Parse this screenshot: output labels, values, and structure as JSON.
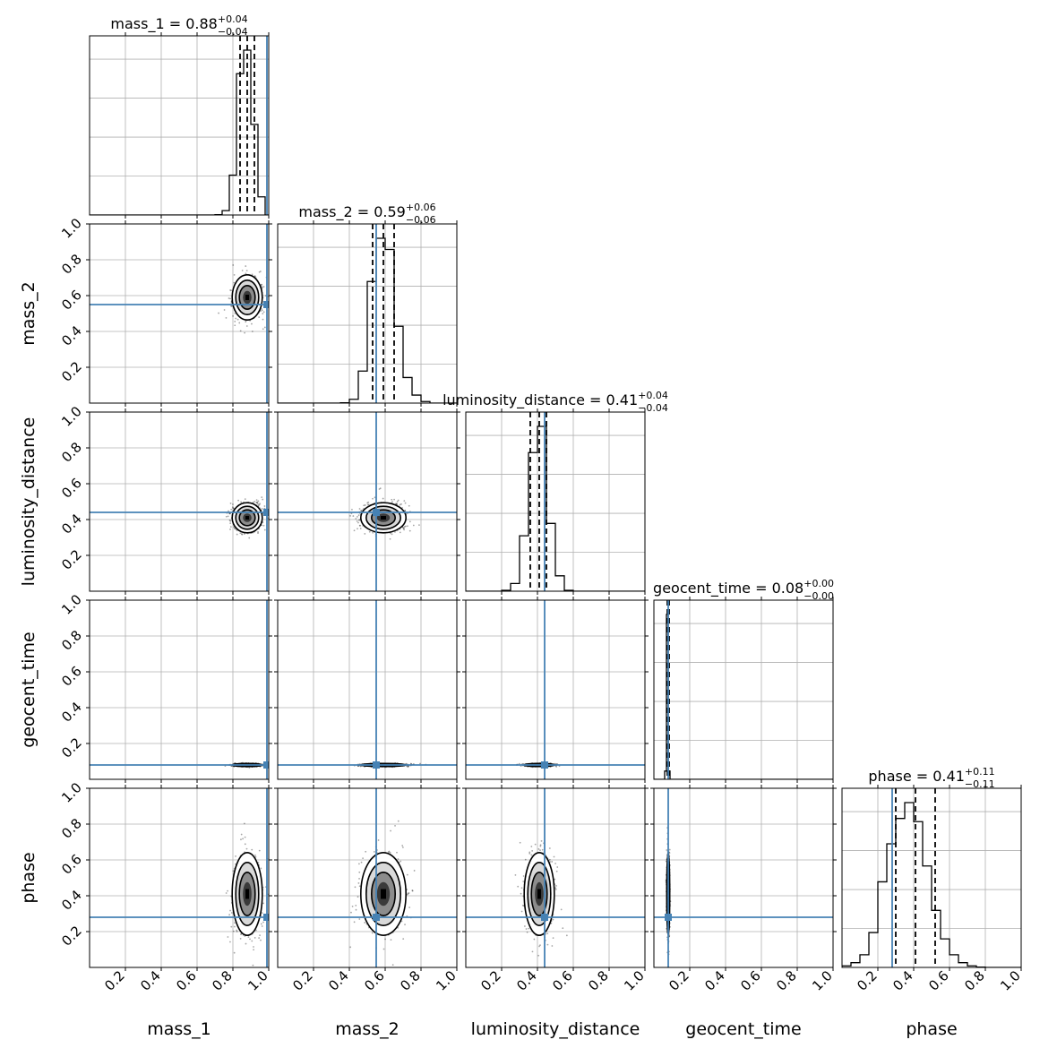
{
  "colors": {
    "truth": "#4682b4",
    "hist": "#000000",
    "grid": "#b0b0b0",
    "axis": "#000000",
    "density_fill": "#333333"
  },
  "chart_data": {
    "type": "corner",
    "parameters": [
      "mass_1",
      "mass_2",
      "luminosity_distance",
      "geocent_time",
      "phase"
    ],
    "axis_labels": [
      "mass_1",
      "mass_2",
      "luminosity_distance",
      "geocent_time",
      "phase"
    ],
    "range": [
      0,
      1
    ],
    "tick_values": [
      0.2,
      0.4,
      0.6,
      0.8,
      1.0
    ],
    "tick_labels": [
      "0.2",
      "0.4",
      "0.6",
      "0.8",
      "1.0"
    ],
    "grid": true,
    "titles": [
      {
        "name": "mass_1",
        "median": "0.88",
        "plus": "+0.04",
        "minus": "−0.04"
      },
      {
        "name": "mass_2",
        "median": "0.59",
        "plus": "+0.06",
        "minus": "−0.06"
      },
      {
        "name": "luminosity_distance",
        "median": "0.41",
        "plus": "+0.04",
        "minus": "−0.04"
      },
      {
        "name": "geocent_time",
        "median": "0.08",
        "plus": "+0.00",
        "minus": "−0.00"
      },
      {
        "name": "phase",
        "median": "0.41",
        "plus": "+0.11",
        "minus": "−0.11"
      }
    ],
    "truths": [
      0.99,
      0.55,
      0.44,
      0.08,
      0.28
    ],
    "posterior_mean": [
      0.88,
      0.59,
      0.41,
      0.08,
      0.41
    ],
    "posterior_sd": [
      0.04,
      0.06,
      0.04,
      0.004,
      0.11
    ],
    "quantiles": [
      [
        0.84,
        0.88,
        0.92
      ],
      [
        0.53,
        0.59,
        0.65
      ],
      [
        0.36,
        0.41,
        0.45
      ],
      [
        0.075,
        0.08,
        0.085
      ],
      [
        0.3,
        0.41,
        0.52
      ]
    ],
    "histograms": [
      {
        "bin_edges": [
          0.7,
          0.74,
          0.78,
          0.82,
          0.86,
          0.9,
          0.94,
          0.98,
          1.0
        ],
        "counts": [
          1,
          12,
          110,
          390,
          455,
          250,
          50,
          0
        ]
      },
      {
        "bin_edges": [
          0.35,
          0.4,
          0.45,
          0.5,
          0.55,
          0.6,
          0.65,
          0.7,
          0.75,
          0.8,
          0.85
        ],
        "counts": [
          1,
          12,
          100,
          380,
          515,
          480,
          240,
          80,
          25,
          5
        ]
      },
      {
        "bin_edges": [
          0.2,
          0.25,
          0.3,
          0.35,
          0.4,
          0.45,
          0.5,
          0.55,
          0.6
        ],
        "counts": [
          3,
          25,
          180,
          450,
          535,
          220,
          50,
          3
        ]
      },
      {
        "bin_edges": [
          0.06,
          0.07,
          0.08,
          0.09
        ],
        "counts": [
          30,
          600,
          30
        ]
      },
      {
        "bin_edges": [
          0.0,
          0.05,
          0.1,
          0.15,
          0.2,
          0.25,
          0.3,
          0.35,
          0.4,
          0.45,
          0.5,
          0.55,
          0.6,
          0.65,
          0.7,
          0.75,
          0.8,
          0.85
        ],
        "counts": [
          5,
          15,
          40,
          110,
          270,
          390,
          470,
          520,
          460,
          320,
          180,
          90,
          40,
          15,
          5,
          1,
          0
        ]
      }
    ],
    "density": {
      "contour_levels": [
        0.5,
        1.0,
        1.5,
        2.0
      ]
    }
  }
}
